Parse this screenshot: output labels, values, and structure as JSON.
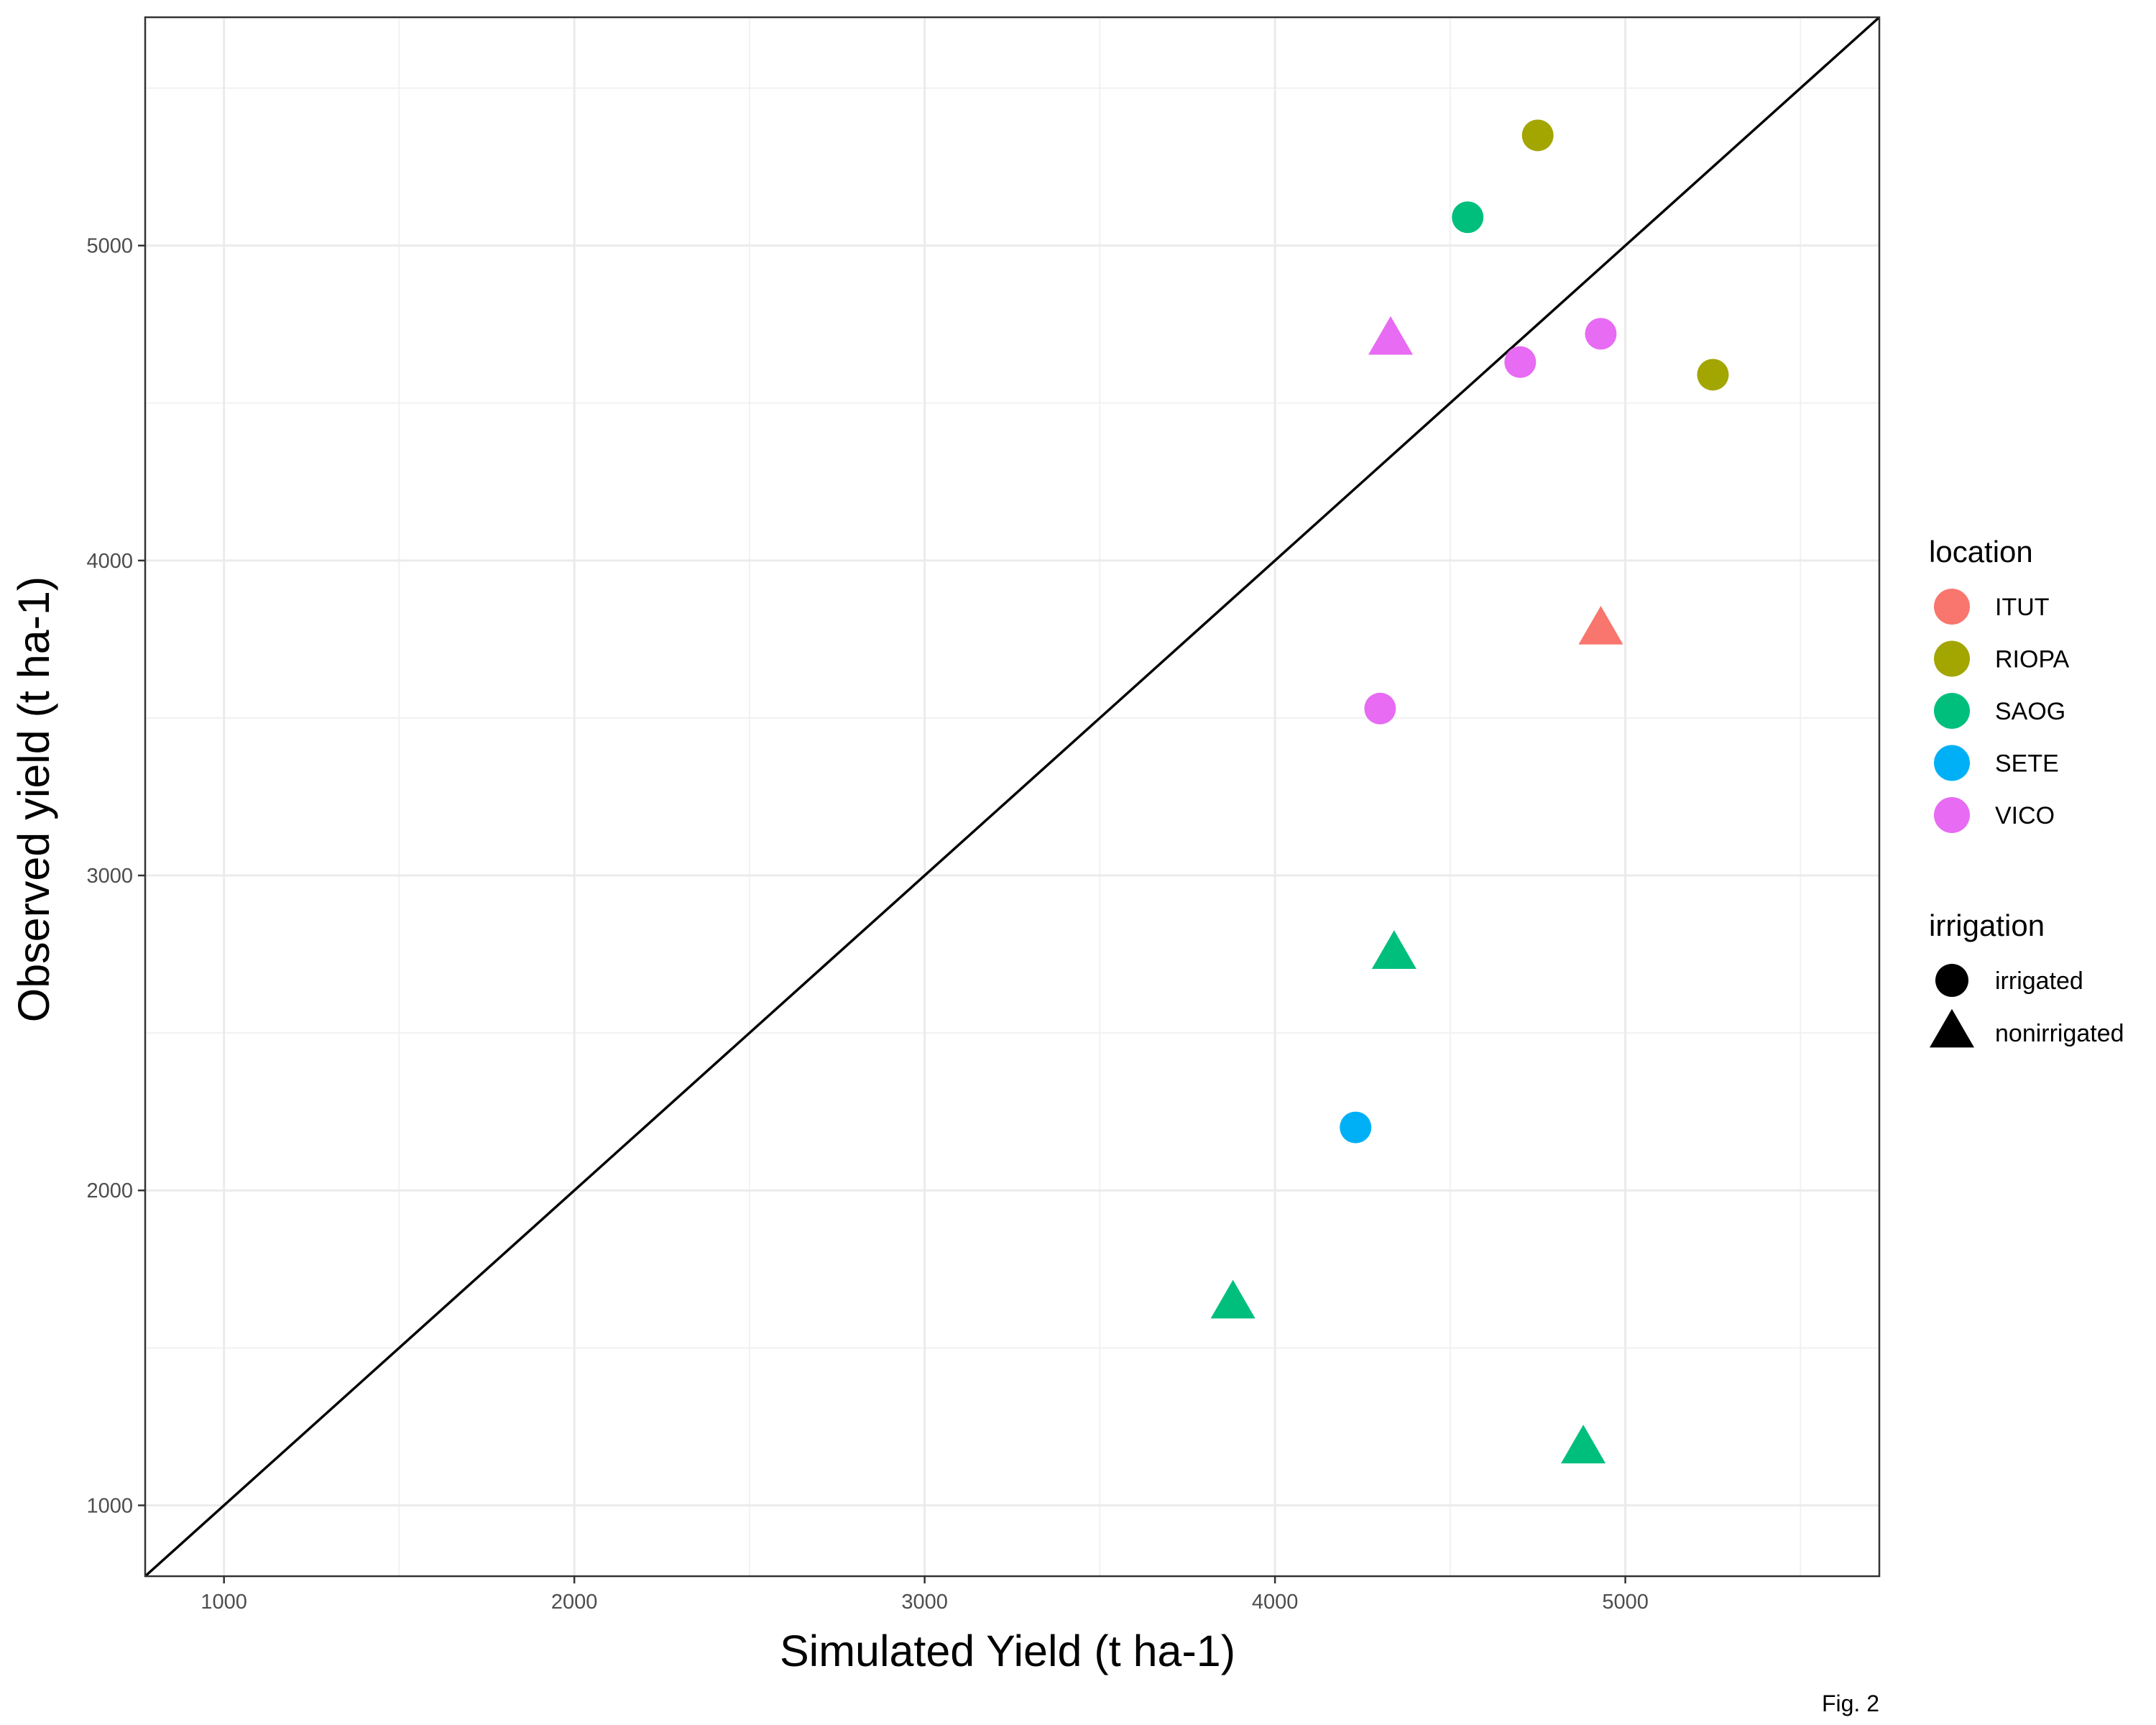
{
  "chart_data": {
    "type": "scatter",
    "xlabel": "Simulated Yield (t ha-1)",
    "ylabel": "Observed yield (t ha-1)",
    "xlim": [
      775,
      5725
    ],
    "ylim": [
      775,
      5725
    ],
    "x_ticks": [
      1000,
      2000,
      3000,
      4000,
      5000
    ],
    "y_ticks": [
      1000,
      2000,
      3000,
      4000,
      5000
    ],
    "x_tick_labels": [
      "1000",
      "2000",
      "3000",
      "4000",
      "5000"
    ],
    "y_tick_labels": [
      "1000",
      "2000",
      "3000",
      "4000",
      "5000"
    ],
    "grid": true,
    "reference_line": "y = x",
    "legend_placement": "right",
    "legends": {
      "location": {
        "title": "location",
        "items": [
          {
            "label": "ITUT",
            "color": "#F8766D"
          },
          {
            "label": "RIOPA",
            "color": "#A3A500"
          },
          {
            "label": "SAOG",
            "color": "#00BF7D"
          },
          {
            "label": "SETE",
            "color": "#00B0F6"
          },
          {
            "label": "VICO",
            "color": "#E76BF3"
          }
        ]
      },
      "irrigation": {
        "title": "irrigation",
        "items": [
          {
            "label": "irrigated",
            "shape": "circle"
          },
          {
            "label": "nonirrigated",
            "shape": "triangle"
          }
        ]
      }
    },
    "points": [
      {
        "x": 4750,
        "y": 5350,
        "location": "RIOPA",
        "irrigation": "irrigated"
      },
      {
        "x": 5250,
        "y": 4590,
        "location": "RIOPA",
        "irrigation": "irrigated"
      },
      {
        "x": 4550,
        "y": 5090,
        "location": "SAOG",
        "irrigation": "irrigated"
      },
      {
        "x": 4700,
        "y": 4630,
        "location": "VICO",
        "irrigation": "irrigated"
      },
      {
        "x": 4930,
        "y": 4720,
        "location": "VICO",
        "irrigation": "irrigated"
      },
      {
        "x": 4300,
        "y": 3530,
        "location": "VICO",
        "irrigation": "irrigated"
      },
      {
        "x": 4230,
        "y": 2200,
        "location": "SETE",
        "irrigation": "irrigated"
      },
      {
        "x": 4330,
        "y": 4700,
        "location": "VICO",
        "irrigation": "nonirrigated"
      },
      {
        "x": 4930,
        "y": 3780,
        "location": "ITUT",
        "irrigation": "nonirrigated"
      },
      {
        "x": 4340,
        "y": 2750,
        "location": "SAOG",
        "irrigation": "nonirrigated"
      },
      {
        "x": 3880,
        "y": 1640,
        "location": "SAOG",
        "irrigation": "nonirrigated"
      },
      {
        "x": 4880,
        "y": 1180,
        "location": "SAOG",
        "irrigation": "nonirrigated"
      }
    ]
  },
  "caption": "Fig. 2"
}
